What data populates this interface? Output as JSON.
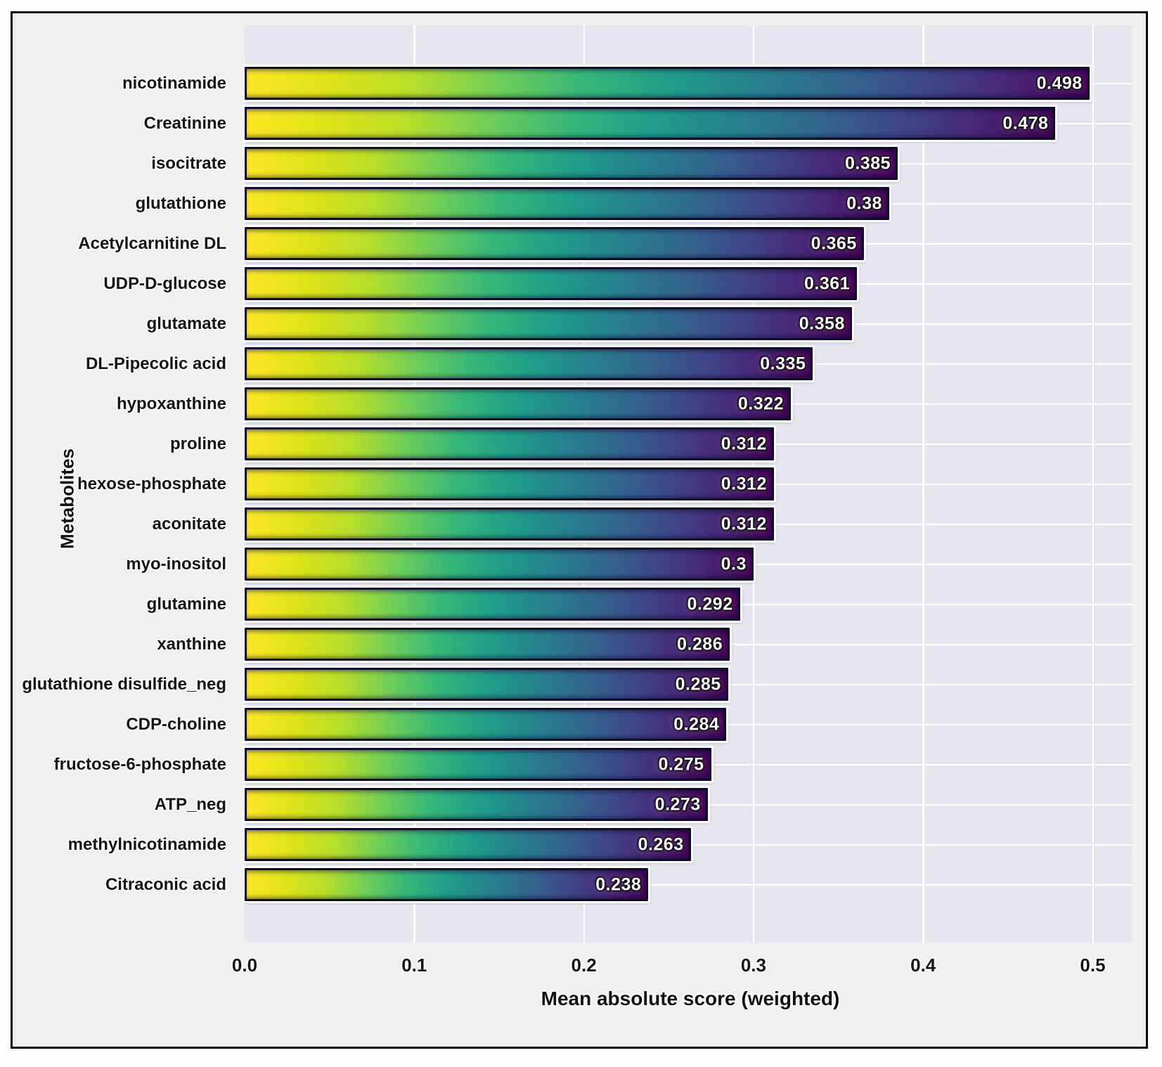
{
  "chart_data": {
    "type": "bar",
    "orientation": "horizontal",
    "title": "",
    "xlabel": "Mean absolute score (weighted)",
    "ylabel": "Metabolites",
    "xlim": [
      0,
      0.523
    ],
    "x_ticks": [
      "0.0",
      "0.1",
      "0.2",
      "0.3",
      "0.4",
      "0.5"
    ],
    "grid": true,
    "legend": "none",
    "bar_style": "each bar filled with full viridis gradient, yellow at 0 to dark purple at bar end, dark navy outline, white halo",
    "categories": [
      "nicotinamide",
      "Creatinine",
      "isocitrate",
      "glutathione",
      "Acetylcarnitine DL",
      "UDP-D-glucose",
      "glutamate",
      "DL-Pipecolic acid",
      "hypoxanthine",
      "proline",
      "hexose-phosphate",
      "aconitate",
      "myo-inositol",
      "glutamine",
      "xanthine",
      "glutathione disulfide_neg",
      "CDP-choline",
      "fructose-6-phosphate",
      "ATP_neg",
      "methylnicotinamide",
      "Citraconic acid"
    ],
    "values": [
      0.498,
      0.478,
      0.385,
      0.38,
      0.365,
      0.361,
      0.358,
      0.335,
      0.322,
      0.312,
      0.312,
      0.312,
      0.3,
      0.292,
      0.286,
      0.285,
      0.284,
      0.275,
      0.273,
      0.263,
      0.238
    ],
    "value_labels": [
      "0.498",
      "0.478",
      "0.385",
      "0.38",
      "0.365",
      "0.361",
      "0.358",
      "0.335",
      "0.322",
      "0.312",
      "0.312",
      "0.312",
      "0.3",
      "0.292",
      "0.286",
      "0.285",
      "0.284",
      "0.275",
      "0.273",
      "0.263",
      "0.238"
    ]
  },
  "colors": {
    "figure_bg": "#f0f0f0",
    "plot_bg": "#e6e6f0",
    "grid": "#ffffff",
    "bar_border": "#0d0c2d",
    "value_text": "#ffffff",
    "label_text": "#141414",
    "viridis_stops": [
      "#fde725",
      "#dde318",
      "#b5de2b",
      "#6ece58",
      "#35b779",
      "#1f9e89",
      "#26828e",
      "#31688e",
      "#3e4989",
      "#482878",
      "#440154"
    ]
  }
}
